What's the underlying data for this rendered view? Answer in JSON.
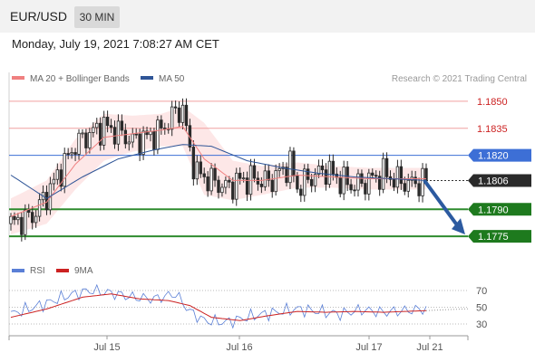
{
  "header": {
    "symbol": "EUR/USD",
    "timeframe": "30 MIN",
    "datetime": "Monday, July 19, 2021 7:08:27 AM CET"
  },
  "legend": {
    "bollinger": "MA 20 + Bollinger Bands",
    "ma50": "MA 50",
    "copyright": "Research © 2021 Trading Central",
    "rsi": "RSI",
    "rsi_ma": "9MA"
  },
  "colors": {
    "bollinger": "#f08080",
    "ma50": "#2f5597",
    "resistance": "#e06666",
    "pivot": "#3d6fd6",
    "support": "#2e8b2e",
    "last_price": "#333333",
    "arrow": "#2c5aa0",
    "candle": "#2a2a2a",
    "rsi": "#5a7fd6",
    "rsi_ma": "#cc2222"
  },
  "chart_data": {
    "type": "candlestick",
    "price_axis": {
      "range": [
        1.1765,
        1.1858
      ]
    },
    "x_ticks": [
      "Jul 15",
      "Jul 16",
      "Jul 17",
      "Jul 21"
    ],
    "levels": [
      {
        "value": 1.185,
        "label": "1.1850",
        "kind": "resistance"
      },
      {
        "value": 1.1835,
        "label": "1.1835",
        "kind": "resistance"
      },
      {
        "value": 1.182,
        "label": "1.1820",
        "kind": "pivot"
      },
      {
        "value": 1.1806,
        "label": "1.1806",
        "kind": "last"
      },
      {
        "value": 1.179,
        "label": "1.1790",
        "kind": "support"
      },
      {
        "value": 1.1775,
        "label": "1.1775",
        "kind": "support"
      }
    ],
    "rsi_axis": {
      "ticks": [
        70,
        50,
        30
      ]
    },
    "close_path": [
      [
        0,
        1.1782
      ],
      [
        6,
        1.1786
      ],
      [
        10,
        1.1798
      ],
      [
        14,
        1.1812
      ],
      [
        18,
        1.1826
      ],
      [
        22,
        1.1832
      ],
      [
        26,
        1.1836
      ],
      [
        30,
        1.1833
      ],
      [
        34,
        1.1828
      ],
      [
        38,
        1.183
      ],
      [
        42,
        1.1834
      ],
      [
        46,
        1.1844
      ],
      [
        48,
        1.1846
      ],
      [
        50,
        1.1822
      ],
      [
        52,
        1.181
      ],
      [
        56,
        1.1806
      ],
      [
        60,
        1.1802
      ],
      [
        64,
        1.1806
      ],
      [
        68,
        1.1807
      ],
      [
        72,
        1.1805
      ],
      [
        76,
        1.1812
      ],
      [
        78,
        1.1815
      ],
      [
        80,
        1.1802
      ],
      [
        84,
        1.1808
      ],
      [
        88,
        1.1812
      ],
      [
        92,
        1.1806
      ],
      [
        96,
        1.1803
      ],
      [
        100,
        1.1806
      ],
      [
        104,
        1.181
      ],
      [
        108,
        1.1806
      ],
      [
        112,
        1.1804
      ],
      [
        116,
        1.1806
      ]
    ],
    "bb_mid": [
      [
        0,
        1.1786
      ],
      [
        10,
        1.1794
      ],
      [
        18,
        1.1815
      ],
      [
        26,
        1.183
      ],
      [
        34,
        1.1832
      ],
      [
        42,
        1.1834
      ],
      [
        48,
        1.1836
      ],
      [
        54,
        1.1818
      ],
      [
        62,
        1.1806
      ],
      [
        70,
        1.1806
      ],
      [
        80,
        1.1809
      ],
      [
        90,
        1.1808
      ],
      [
        100,
        1.1807
      ],
      [
        116,
        1.1807
      ]
    ],
    "bb_width": [
      [
        0,
        0.001
      ],
      [
        10,
        0.0012
      ],
      [
        18,
        0.0014
      ],
      [
        26,
        0.0013
      ],
      [
        34,
        0.001
      ],
      [
        42,
        0.0009
      ],
      [
        48,
        0.0011
      ],
      [
        54,
        0.002
      ],
      [
        62,
        0.0011
      ],
      [
        70,
        0.0008
      ],
      [
        80,
        0.0007
      ],
      [
        90,
        0.0006
      ],
      [
        100,
        0.0006
      ],
      [
        116,
        0.0006
      ]
    ],
    "ma50": [
      [
        0,
        1.1809
      ],
      [
        10,
        1.1796
      ],
      [
        20,
        1.1808
      ],
      [
        30,
        1.1818
      ],
      [
        40,
        1.1823
      ],
      [
        48,
        1.1826
      ],
      [
        56,
        1.1825
      ],
      [
        66,
        1.1817
      ],
      [
        76,
        1.1813
      ],
      [
        86,
        1.181
      ],
      [
        96,
        1.1808
      ],
      [
        106,
        1.1807
      ],
      [
        116,
        1.1806
      ]
    ],
    "rsi_path": [
      [
        0,
        42
      ],
      [
        8,
        52
      ],
      [
        16,
        64
      ],
      [
        22,
        70
      ],
      [
        28,
        67
      ],
      [
        34,
        62
      ],
      [
        40,
        60
      ],
      [
        46,
        66
      ],
      [
        50,
        45
      ],
      [
        54,
        34
      ],
      [
        60,
        32
      ],
      [
        68,
        40
      ],
      [
        74,
        44
      ],
      [
        80,
        48
      ],
      [
        86,
        45
      ],
      [
        92,
        42
      ],
      [
        98,
        47
      ],
      [
        104,
        44
      ],
      [
        110,
        46
      ],
      [
        116,
        48
      ]
    ],
    "rsi_ma_path": [
      [
        0,
        38
      ],
      [
        10,
        48
      ],
      [
        20,
        62
      ],
      [
        28,
        66
      ],
      [
        36,
        60
      ],
      [
        44,
        58
      ],
      [
        50,
        52
      ],
      [
        56,
        38
      ],
      [
        64,
        34
      ],
      [
        72,
        40
      ],
      [
        80,
        45
      ],
      [
        88,
        44
      ],
      [
        96,
        45
      ],
      [
        104,
        44
      ],
      [
        110,
        45
      ],
      [
        116,
        46
      ]
    ]
  }
}
